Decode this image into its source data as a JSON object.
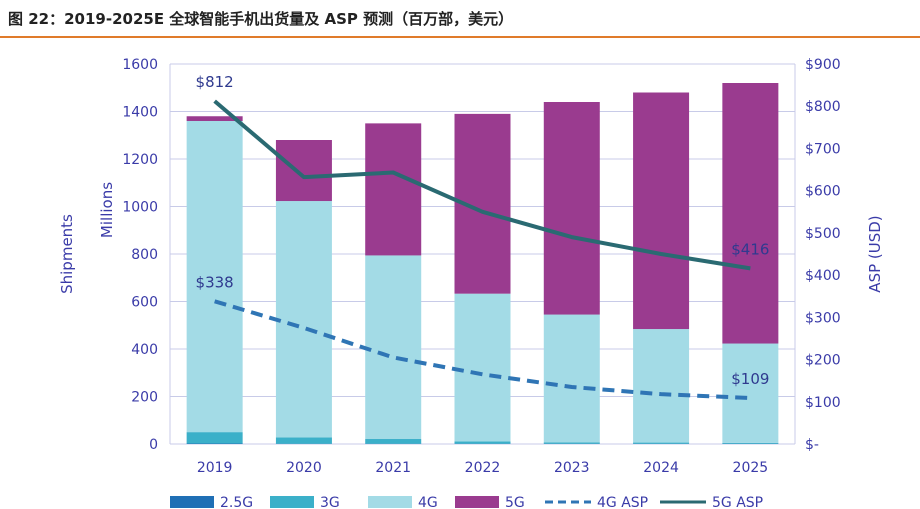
{
  "title": "图 22：2019-2025E 全球智能手机出货量及 ASP 预测（百万部，美元）",
  "chart_data": {
    "type": "bar",
    "stacked": true,
    "categories": [
      "2019",
      "2020",
      "2021",
      "2022",
      "2023",
      "2024",
      "2025"
    ],
    "left_axis": {
      "label_line1": "Shipments",
      "label_line2": "Millions",
      "ylim": [
        0,
        1600
      ],
      "ticks": [
        "0",
        "200",
        "400",
        "600",
        "800",
        "1000",
        "1200",
        "1400",
        "1600"
      ]
    },
    "right_axis": {
      "label": "ASP (USD)",
      "ylim": [
        0,
        900
      ],
      "ticks": [
        "$-",
        "$100",
        "$200",
        "$300",
        "$400",
        "$500",
        "$600",
        "$700",
        "$800",
        "$900"
      ]
    },
    "series": [
      {
        "name": "2.5G",
        "axis": "left",
        "kind": "bar",
        "color": "#1f6fb5",
        "values": [
          2,
          1,
          1,
          1,
          1,
          1,
          1
        ]
      },
      {
        "name": "3G",
        "axis": "left",
        "kind": "bar",
        "color": "#3bb0c9",
        "values": [
          48,
          27,
          20,
          10,
          6,
          5,
          4
        ]
      },
      {
        "name": "4G",
        "axis": "left",
        "kind": "bar",
        "color": "#a3dbe6",
        "values": [
          1310,
          995,
          773,
          622,
          538,
          478,
          418
        ]
      },
      {
        "name": "5G",
        "axis": "left",
        "kind": "bar",
        "color": "#9a3b8f",
        "values": [
          20,
          257,
          556,
          757,
          895,
          996,
          1097
        ]
      },
      {
        "name": "4G ASP",
        "axis": "right",
        "kind": "dashed-line",
        "color": "#2f75b5",
        "values": [
          338,
          275,
          205,
          165,
          135,
          118,
          109
        ]
      },
      {
        "name": "5G ASP",
        "axis": "right",
        "kind": "line",
        "color": "#2a6a72",
        "values": [
          812,
          632,
          643,
          550,
          490,
          450,
          416
        ]
      }
    ],
    "annotations": [
      {
        "series": "5G ASP",
        "index": 0,
        "text": "$812",
        "pos": "above"
      },
      {
        "series": "4G ASP",
        "index": 0,
        "text": "$338",
        "pos": "above"
      },
      {
        "series": "5G ASP",
        "index": 6,
        "text": "$416",
        "pos": "above"
      },
      {
        "series": "4G ASP",
        "index": 6,
        "text": "$109",
        "pos": "above"
      }
    ],
    "grid": "horizontal",
    "legend_position": "bottom"
  }
}
